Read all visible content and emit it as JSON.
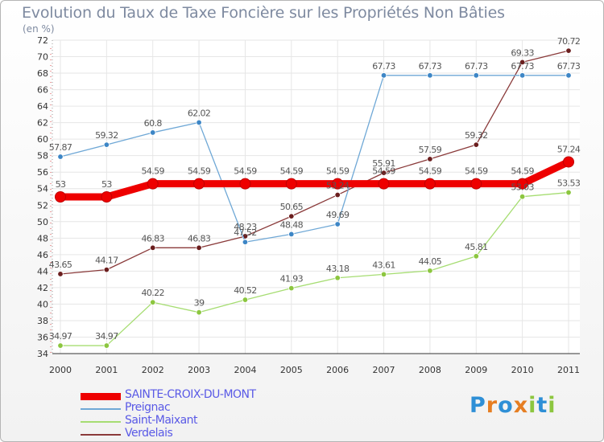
{
  "title": "Evolution du Taux de Taxe Foncière sur les Propriétés Non Bâties",
  "unit_label": "(en %)",
  "logo": {
    "text": "Proxiti",
    "colors": [
      "#2e8fd6",
      "#e67e22",
      "#2e8fd6",
      "#e67e22",
      "#8cc63f",
      "#2e8fd6",
      "#8cc63f"
    ]
  },
  "chart_data": {
    "type": "line",
    "title": "Evolution du Taux de Taxe Foncière sur les Propriétés Non Bâties",
    "ylabel": "(en %)",
    "xlabel": "",
    "categories": [
      "2000",
      "2001",
      "2002",
      "2003",
      "2004",
      "2005",
      "2006",
      "2007",
      "2008",
      "2009",
      "2010",
      "2011"
    ],
    "ylim": [
      34,
      72
    ],
    "yticks": [
      34,
      36,
      38,
      40,
      42,
      44,
      46,
      48,
      50,
      52,
      54,
      56,
      58,
      60,
      62,
      64,
      66,
      68,
      70,
      72
    ],
    "grid": true,
    "legend_position": "bottom-left",
    "series": [
      {
        "name": "SAINTE-CROIX-DU-MONT",
        "color": "#ee0000",
        "marker": "#ee0000",
        "bold": true,
        "values": [
          53,
          53,
          54.59,
          54.59,
          54.59,
          54.59,
          54.59,
          54.59,
          54.59,
          54.59,
          54.59,
          57.24
        ],
        "labels": [
          "53",
          "53",
          "54.59",
          "54.59",
          "54.59",
          "54.59",
          "54.59",
          "54.59",
          "54.59",
          "54.59",
          "54.59",
          "57.24"
        ]
      },
      {
        "name": "Preignac",
        "color": "#6fa8d6",
        "marker": "#3d86c6",
        "bold": false,
        "values": [
          57.87,
          59.32,
          60.8,
          62.02,
          47.52,
          48.48,
          49.69,
          67.73,
          67.73,
          67.73,
          67.73,
          67.73
        ],
        "labels": [
          "57.87",
          "59.32",
          "60.8",
          "62.02",
          "47.52",
          "48.48",
          "49.69",
          "67.73",
          "67.73",
          "67.73",
          "67.73",
          "67.73"
        ]
      },
      {
        "name": "Saint-Maixant",
        "color": "#a6dd72",
        "marker": "#8cc63f",
        "bold": false,
        "values": [
          34.97,
          34.97,
          40.22,
          39,
          40.52,
          41.93,
          43.18,
          43.61,
          44.05,
          45.81,
          53.03,
          53.53
        ],
        "labels": [
          "34.97",
          "34.97",
          "40.22",
          "39",
          "40.52",
          "41.93",
          "43.18",
          "43.61",
          "44.05",
          "45.81",
          "53.03",
          "53.53"
        ]
      },
      {
        "name": "Verdelais",
        "color": "#8a3a3a",
        "marker": "#6b1e1e",
        "bold": false,
        "values": [
          43.65,
          44.17,
          46.83,
          46.83,
          48.23,
          50.65,
          53.24,
          55.91,
          57.59,
          59.32,
          69.33,
          70.72
        ],
        "labels": [
          "43.65",
          "44.17",
          "46.83",
          "46.83",
          "48.23",
          "50.65",
          "53.24",
          "55.91",
          "57.59",
          "59.32",
          "69.33",
          "70.72"
        ]
      }
    ]
  }
}
